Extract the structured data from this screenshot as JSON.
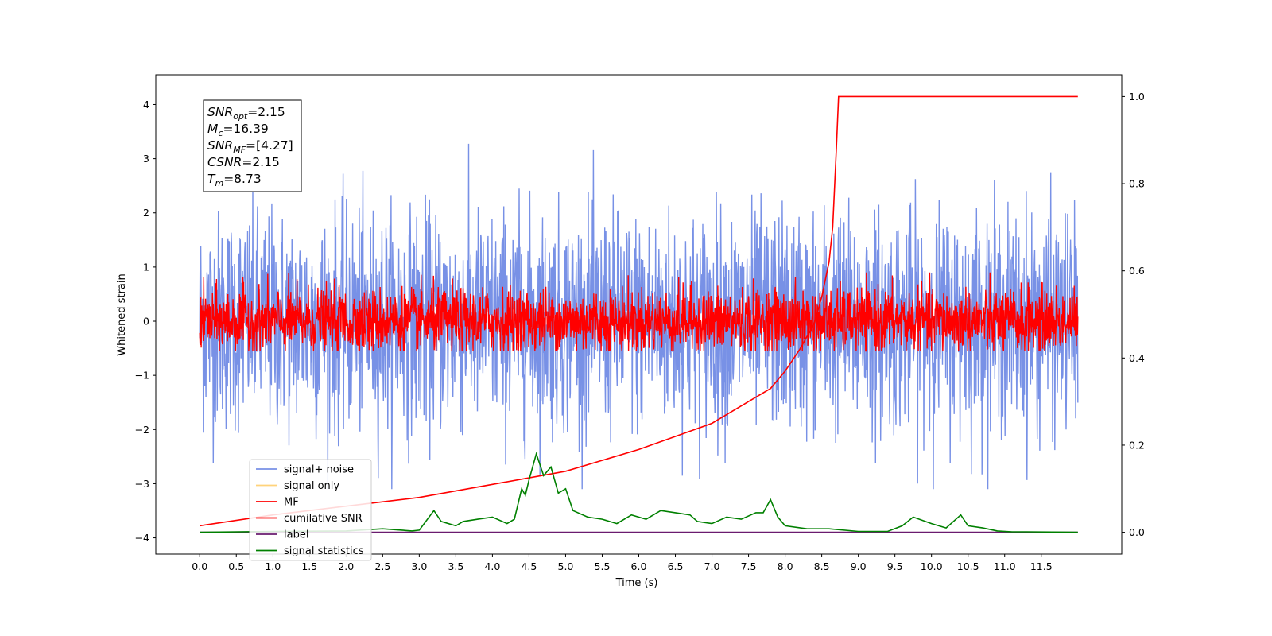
{
  "chart_data": {
    "type": "line",
    "xlabel": "Time (s)",
    "ylabel": "Whitened strain",
    "xlim": [
      -0.6,
      12.6
    ],
    "ylim": [
      -4.3,
      4.55
    ],
    "y2lim": [
      -0.05,
      1.05
    ],
    "x_ticks": [
      "0.0",
      "0.5",
      "1.0",
      "1.5",
      "2.0",
      "2.5",
      "3.0",
      "3.5",
      "4.0",
      "4.5",
      "5.0",
      "5.5",
      "6.0",
      "6.5",
      "7.0",
      "7.5",
      "8.0",
      "8.5",
      "9.0",
      "9.5",
      "10.0",
      "10.5",
      "11.0",
      "11.5"
    ],
    "y_ticks": [
      -4,
      -3,
      -2,
      -1,
      0,
      1,
      2,
      3,
      4
    ],
    "y_tick_labels": [
      "−4",
      "−3",
      "−2",
      "−1",
      "0",
      "1",
      "2",
      "3",
      "4"
    ],
    "y2_ticks": [
      "0.0",
      "0.2",
      "0.4",
      "0.6",
      "0.8",
      "1.0"
    ],
    "grid": false,
    "legend_position": "lower-left",
    "colors": {
      "signal_noise": "#7891e6",
      "signal_only": "#ffd37a",
      "mf": "#ff0000",
      "csnr": "#ff0000",
      "label": "#6a1b6f",
      "stats": "#008000"
    },
    "series": [
      {
        "name": "signal+ noise",
        "axis": "left",
        "x_range": [
          0,
          12
        ],
        "noise_amplitude": 1.0,
        "y_range": [
          -3.1,
          4.15
        ]
      },
      {
        "name": "signal only",
        "axis": "left",
        "x_range": [
          0,
          12
        ],
        "values_note": "not visible"
      },
      {
        "name": "MF",
        "axis": "left",
        "x_range": [
          0,
          12
        ],
        "noise_amplitude": 0.3,
        "y_range": [
          -0.55,
          0.9
        ]
      },
      {
        "name": "cumilative SNR",
        "axis": "right",
        "x": [
          0.0,
          1.0,
          2.0,
          3.0,
          4.0,
          5.0,
          6.0,
          6.5,
          7.0,
          7.5,
          7.8,
          8.0,
          8.2,
          8.4,
          8.5,
          8.6,
          8.65,
          8.7,
          8.73,
          12.0
        ],
        "values": [
          0.015,
          0.04,
          0.06,
          0.08,
          0.11,
          0.14,
          0.19,
          0.22,
          0.25,
          0.3,
          0.33,
          0.37,
          0.42,
          0.48,
          0.54,
          0.62,
          0.7,
          0.88,
          1.0,
          1.0
        ]
      },
      {
        "name": "label",
        "axis": "right",
        "x": [
          0,
          12
        ],
        "values": [
          0.0,
          0.0
        ]
      },
      {
        "name": "signal statistics",
        "axis": "right",
        "x": [
          0.0,
          1.0,
          2.0,
          2.5,
          2.9,
          3.0,
          3.2,
          3.3,
          3.5,
          3.6,
          3.8,
          4.0,
          4.2,
          4.3,
          4.4,
          4.45,
          4.5,
          4.6,
          4.7,
          4.8,
          4.9,
          5.0,
          5.1,
          5.3,
          5.5,
          5.7,
          5.9,
          6.1,
          6.3,
          6.5,
          6.7,
          6.8,
          7.0,
          7.2,
          7.4,
          7.6,
          7.7,
          7.8,
          7.9,
          8.0,
          8.3,
          8.6,
          9.0,
          9.4,
          9.6,
          9.75,
          10.0,
          10.2,
          10.4,
          10.5,
          10.7,
          10.9,
          11.1,
          11.3,
          12.0
        ],
        "values": [
          0.0,
          0.002,
          0.003,
          0.008,
          0.003,
          0.005,
          0.05,
          0.025,
          0.015,
          0.025,
          0.03,
          0.035,
          0.02,
          0.03,
          0.1,
          0.085,
          0.12,
          0.18,
          0.13,
          0.15,
          0.09,
          0.1,
          0.05,
          0.035,
          0.03,
          0.02,
          0.04,
          0.03,
          0.05,
          0.045,
          0.04,
          0.025,
          0.02,
          0.035,
          0.03,
          0.045,
          0.045,
          0.075,
          0.035,
          0.015,
          0.008,
          0.008,
          0.002,
          0.002,
          0.015,
          0.035,
          0.02,
          0.01,
          0.04,
          0.015,
          0.01,
          0.003,
          0.001,
          0.001,
          0.0
        ]
      }
    ],
    "annotation": {
      "lines": [
        {
          "var": "SNR",
          "sub": "opt",
          "value": "=2.15"
        },
        {
          "var": "M",
          "sub": "c",
          "value": "=16.39"
        },
        {
          "var": "SNR",
          "sub": "MF",
          "value": "=[4.27]"
        },
        {
          "var": "CSNR",
          "sub": "",
          "value": "=2.15"
        },
        {
          "var": "T",
          "sub": "m",
          "value": "=8.73"
        }
      ]
    }
  }
}
